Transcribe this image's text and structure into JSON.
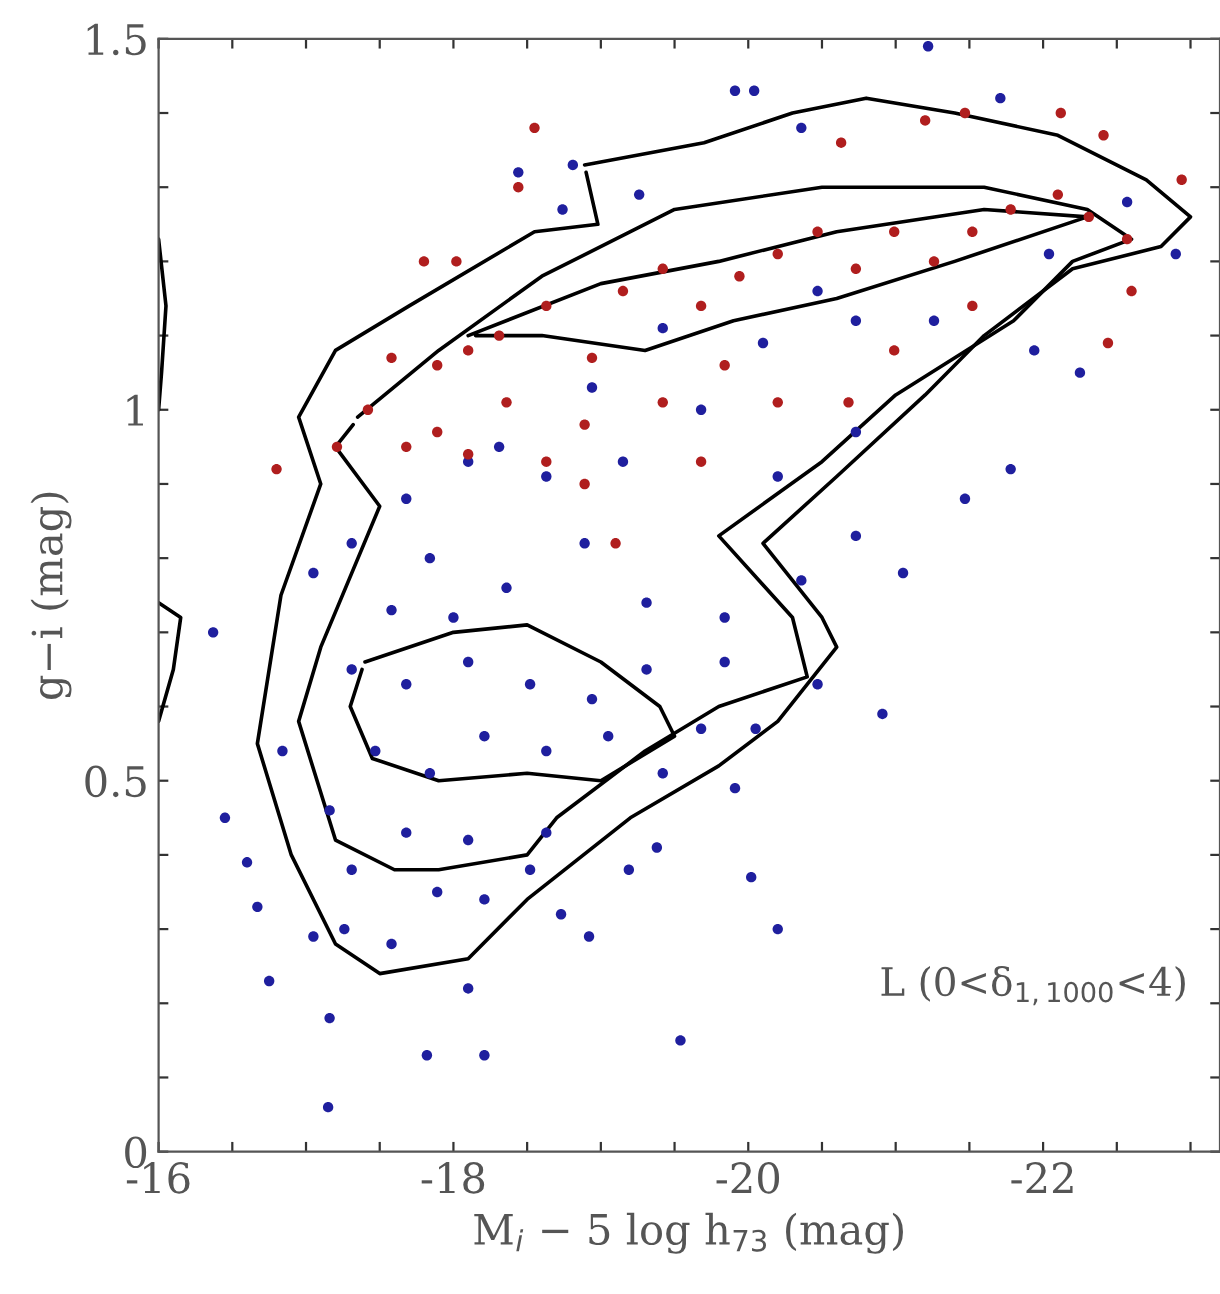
{
  "chart_data": {
    "type": "scatter",
    "xlabel": "M$_{i}$ − 5 log h$_{73}$ (mag)",
    "ylabel": "g−i (mag)",
    "annotations": [
      "L (0<δ$_{1,1000}$<4)"
    ],
    "xlim": [
      -16,
      -23.2
    ],
    "ylim": [
      0,
      1.5
    ],
    "xticks": [
      -16,
      {
        "value": -16.5,
        "label": null
      },
      -18,
      {
        "value": -17,
        "label": null
      },
      {
        "value": -17.5,
        "label": null
      },
      {
        "value": -18.5,
        "label": null
      },
      {
        "value": -19,
        "label": null
      },
      {
        "value": -19.5,
        "label": null
      },
      -20,
      {
        "value": -20.5,
        "label": null
      },
      {
        "value": -21,
        "label": null
      },
      {
        "value": -21.5,
        "label": null
      },
      -22,
      {
        "value": -22.5,
        "label": null
      },
      {
        "value": -23,
        "label": null
      }
    ],
    "yticks": [
      0,
      {
        "value": 0.1,
        "label": null
      },
      {
        "value": 0.2,
        "label": null
      },
      {
        "value": 0.3,
        "label": null
      },
      {
        "value": 0.4,
        "label": null
      },
      0.5,
      {
        "value": 0.6,
        "label": null
      },
      {
        "value": 0.7,
        "label": null
      },
      {
        "value": 0.8,
        "label": null
      },
      {
        "value": 0.9,
        "label": null
      },
      1,
      {
        "value": 1.1,
        "label": null
      },
      {
        "value": 1.2,
        "label": null
      },
      {
        "value": 1.3,
        "label": null
      },
      {
        "value": 1.4,
        "label": null
      },
      1.5
    ],
    "grid": false,
    "legend": false,
    "marker": "circle",
    "series": [
      {
        "color": "#1f1f9e",
        "x": [
          -17.15,
          -17.82,
          -18.21,
          -19.54,
          -16.75,
          -17.16,
          -18.1,
          -16.45,
          -16.6,
          -16.67,
          -18.92,
          -18.73,
          -19.19,
          -20.02,
          -20.2,
          -20.91,
          -19.91,
          -19.38,
          -17.05,
          -17.26,
          -17.58,
          -17.89,
          -18.21,
          -18.52,
          -17.31,
          -17.68,
          -18.1,
          -18.63,
          -17.47,
          -17.84,
          -18.21,
          -18.63,
          -19.05,
          -19.42,
          -19.68,
          -20.05,
          -20.47,
          -17.31,
          -17.68,
          -18.1,
          -18.52,
          -18.94,
          -19.31,
          -19.84,
          -17.16,
          -16.84,
          -21.22,
          -19.91,
          -20.04,
          -18.44,
          -18.81,
          -18.74,
          -19.26,
          -20.36,
          -21.71,
          -22.9,
          -22.25,
          -21.78,
          -21.47,
          -21.05,
          -20.73,
          -20.2,
          -19.68,
          -19.15,
          -18.63,
          -18.1,
          -17.68,
          -17.31,
          -17.05,
          -16.37,
          -20.1,
          -20.73,
          -21.26,
          -21.94,
          -22.57,
          -22.04,
          -20.73,
          -20.47,
          -19.42,
          -18.94,
          -18.31,
          -17.84,
          -18.36,
          -18.89,
          -19.31,
          -19.84,
          -20.36,
          -18.0,
          -17.58
        ],
        "values": [
          0.06,
          0.13,
          0.13,
          0.15,
          0.23,
          0.18,
          0.22,
          0.45,
          0.39,
          0.33,
          0.29,
          0.32,
          0.38,
          0.37,
          0.3,
          0.59,
          0.49,
          0.41,
          0.29,
          0.3,
          0.28,
          0.35,
          0.34,
          0.38,
          0.38,
          0.43,
          0.42,
          0.43,
          0.54,
          0.51,
          0.56,
          0.54,
          0.56,
          0.51,
          0.57,
          0.57,
          0.63,
          0.65,
          0.63,
          0.66,
          0.63,
          0.61,
          0.65,
          0.66,
          0.46,
          0.54,
          1.49,
          1.43,
          1.43,
          1.32,
          1.33,
          1.27,
          1.29,
          1.38,
          1.42,
          1.21,
          1.05,
          0.92,
          0.88,
          0.78,
          0.83,
          0.91,
          1.0,
          0.93,
          0.91,
          0.93,
          0.88,
          0.82,
          0.78,
          0.7,
          1.09,
          0.97,
          1.12,
          1.08,
          1.28,
          1.21,
          1.12,
          1.16,
          1.11,
          1.03,
          0.95,
          0.8,
          0.76,
          0.82,
          0.74,
          0.72,
          0.77,
          0.72,
          0.73
        ]
      },
      {
        "color": "#b01e1e",
        "x": [
          -18.55,
          -18.44,
          -17.8,
          -18.02,
          -16.8,
          -17.21,
          -17.42,
          -17.58,
          -17.89,
          -18.1,
          -18.31,
          -18.63,
          -18.94,
          -19.15,
          -19.42,
          -19.68,
          -19.94,
          -20.2,
          -20.47,
          -20.73,
          -20.99,
          -21.26,
          -21.52,
          -21.78,
          -22.1,
          -22.31,
          -22.57,
          -22.94,
          -22.41,
          -22.12,
          -21.47,
          -21.2,
          -20.63,
          -22.6,
          -22.44,
          -19.84,
          -19.42,
          -18.89,
          -18.36,
          -17.89,
          -18.1,
          -17.68,
          -18.63,
          -19.68,
          -20.2,
          -20.68,
          -20.99,
          -21.52,
          -19.1,
          -18.89
        ],
        "values": [
          1.38,
          1.3,
          1.2,
          1.2,
          0.92,
          0.95,
          1.0,
          1.07,
          1.06,
          1.08,
          1.1,
          1.14,
          1.07,
          1.16,
          1.19,
          1.14,
          1.18,
          1.21,
          1.24,
          1.19,
          1.24,
          1.2,
          1.24,
          1.27,
          1.29,
          1.26,
          1.23,
          1.31,
          1.37,
          1.4,
          1.4,
          1.39,
          1.36,
          1.16,
          1.09,
          1.06,
          1.01,
          0.98,
          1.01,
          0.97,
          0.94,
          0.95,
          0.93,
          0.93,
          1.01,
          1.01,
          1.08,
          1.14,
          0.82,
          0.9
        ]
      },
      {
        "type": "line",
        "marker": "none",
        "line_style": "solid",
        "color": "#000000",
        "x": [
          -18.89,
          -19.7,
          -20.3,
          -20.8,
          -21.4,
          -22.1,
          -22.7,
          -23.0,
          -22.8,
          -22.2,
          -21.6,
          -21.2,
          -20.6,
          -20.1,
          -20.5,
          -20.6,
          -20.2,
          -19.8,
          -19.2,
          -18.5,
          -18.1,
          -17.5,
          -17.2,
          -16.9,
          -16.67,
          -16.83,
          -17.1,
          -16.95,
          -17.2,
          -17.7,
          -18.55,
          -18.98,
          -18.9
        ],
        "values": [
          1.33,
          1.36,
          1.4,
          1.42,
          1.4,
          1.37,
          1.31,
          1.26,
          1.22,
          1.19,
          1.1,
          1.02,
          0.91,
          0.82,
          0.72,
          0.68,
          0.58,
          0.52,
          0.45,
          0.34,
          0.26,
          0.24,
          0.28,
          0.4,
          0.55,
          0.75,
          0.9,
          0.99,
          1.08,
          1.14,
          1.24,
          1.25,
          1.32
        ]
      },
      {
        "type": "line",
        "marker": "none",
        "line_style": "solid",
        "color": "#000000",
        "x": [
          -17.35,
          -17.9,
          -18.6,
          -19.5,
          -20.5,
          -21.6,
          -22.3,
          -22.6,
          -22.2,
          -21.8,
          -21.0,
          -20.5,
          -19.8,
          -20.3,
          -20.4,
          -19.8,
          -19.3,
          -18.7,
          -18.5,
          -17.9,
          -17.6,
          -17.2,
          -16.95,
          -17.1,
          -17.5,
          -17.2,
          -17.32
        ],
        "values": [
          0.99,
          1.08,
          1.18,
          1.27,
          1.3,
          1.3,
          1.27,
          1.23,
          1.2,
          1.12,
          1.02,
          0.93,
          0.83,
          0.72,
          0.64,
          0.6,
          0.54,
          0.45,
          0.4,
          0.38,
          0.38,
          0.42,
          0.58,
          0.68,
          0.87,
          0.95,
          0.98
        ]
      },
      {
        "type": "line",
        "marker": "none",
        "line_style": "solid",
        "color": "#000000",
        "x": [
          -18.1,
          -19.0,
          -19.8,
          -20.6,
          -21.6,
          -22.3,
          -21.4,
          -20.6,
          -19.9,
          -19.3,
          -18.6,
          -18.15
        ],
        "values": [
          1.1,
          1.17,
          1.2,
          1.24,
          1.27,
          1.26,
          1.2,
          1.15,
          1.12,
          1.08,
          1.1,
          1.1
        ]
      },
      {
        "type": "line",
        "marker": "none",
        "line_style": "solid",
        "color": "#000000",
        "x": [
          -17.4,
          -18.0,
          -18.5,
          -19.0,
          -19.4,
          -19.5,
          -19.0,
          -18.5,
          -17.9,
          -17.45,
          -17.3,
          -17.38
        ],
        "values": [
          0.66,
          0.7,
          0.71,
          0.66,
          0.6,
          0.56,
          0.5,
          0.51,
          0.5,
          0.53,
          0.6,
          0.65
        ]
      },
      {
        "type": "line",
        "marker": "none",
        "line_style": "solid",
        "color": "#000000",
        "x": [
          -16.0,
          -16.1,
          -16.15,
          -16.0
        ],
        "values": [
          0.58,
          0.65,
          0.72,
          0.74
        ]
      },
      {
        "type": "line",
        "marker": "none",
        "line_style": "solid",
        "color": "#000000",
        "x": [
          -16.0,
          -16.05,
          -16.02,
          -16.0
        ],
        "values": [
          1.23,
          1.14,
          1.05,
          1.0
        ]
      }
    ]
  }
}
